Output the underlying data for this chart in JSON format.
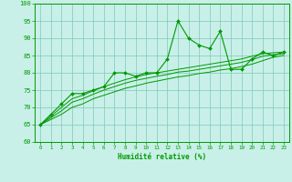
{
  "x": [
    0,
    1,
    2,
    3,
    4,
    5,
    6,
    7,
    8,
    9,
    10,
    11,
    12,
    13,
    14,
    15,
    16,
    17,
    18,
    19,
    20,
    21,
    22,
    23
  ],
  "y_main": [
    65,
    68,
    71,
    74,
    74,
    75,
    76,
    80,
    80,
    79,
    80,
    80,
    84,
    95,
    90,
    88,
    87,
    92,
    81,
    81,
    84,
    86,
    85,
    86
  ],
  "y_line1": [
    65,
    66.5,
    68,
    70,
    71,
    72.5,
    73.5,
    74.5,
    75.5,
    76.2,
    77,
    77.6,
    78.2,
    78.8,
    79.2,
    79.8,
    80.2,
    80.8,
    81.2,
    81.8,
    82.5,
    83.5,
    84.5,
    85.0
  ],
  "y_line2": [
    65,
    67,
    69,
    71.5,
    72.5,
    73.8,
    75,
    76,
    77,
    77.8,
    78.4,
    79,
    79.5,
    80.2,
    80.5,
    81,
    81.5,
    82,
    82.5,
    83,
    83.8,
    84.8,
    85.2,
    85.5
  ],
  "y_line3": [
    65,
    67.5,
    70,
    72.5,
    73.5,
    74.8,
    76,
    77,
    78,
    78.8,
    79.5,
    80,
    80.5,
    81,
    81.5,
    82,
    82.5,
    83,
    83.5,
    84,
    84.8,
    85.5,
    85.8,
    86.0
  ],
  "line_color": "#009900",
  "bg_color": "#c8f0e8",
  "grid_color": "#80c8b8",
  "xlabel": "Humidité relative (%)",
  "ylim": [
    60,
    100
  ],
  "xlim": [
    -0.5,
    23.5
  ],
  "yticks": [
    60,
    65,
    70,
    75,
    80,
    85,
    90,
    95,
    100
  ],
  "xticks": [
    0,
    1,
    2,
    3,
    4,
    5,
    6,
    7,
    8,
    9,
    10,
    11,
    12,
    13,
    14,
    15,
    16,
    17,
    18,
    19,
    20,
    21,
    22,
    23
  ]
}
